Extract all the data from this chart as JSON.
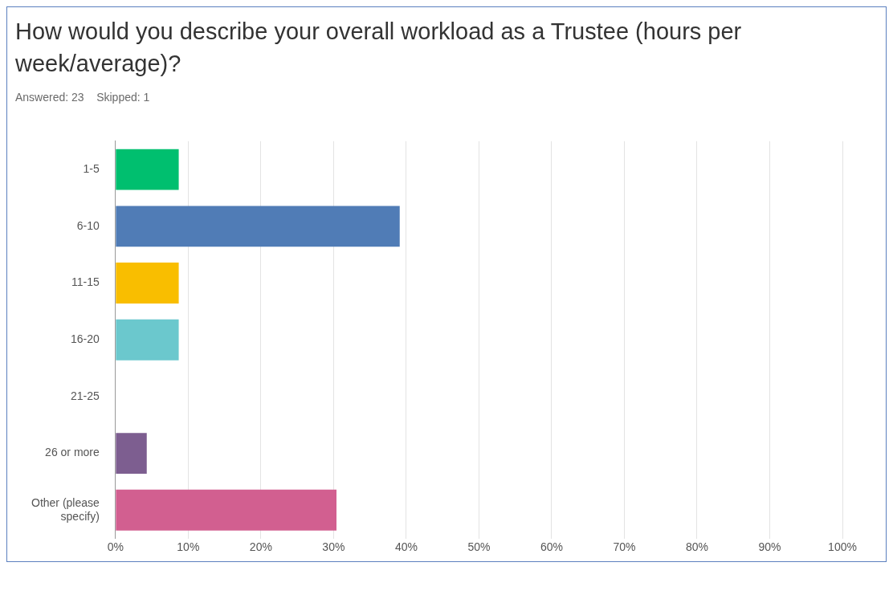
{
  "chart_data": {
    "type": "bar",
    "orientation": "horizontal",
    "title": "How would you describe your overall workload as a Trustee (hours per week/average)?",
    "subtitle": "Answered: 23    Skipped: 1",
    "categories": [
      "1-5",
      "6-10",
      "11-15",
      "16-20",
      "21-25",
      "26 or more",
      "Other (please specify)"
    ],
    "values": [
      8.7,
      39.1,
      8.7,
      8.7,
      0,
      4.3,
      30.4
    ],
    "colors": [
      "#00bf6f",
      "#507cb6",
      "#f9be00",
      "#6bc8cd",
      "#ff8b4f",
      "#7d5e90",
      "#d25f90"
    ],
    "xlim": [
      0,
      100
    ],
    "xticks": [
      {
        "value": 0,
        "label": "0%"
      },
      {
        "value": 10,
        "label": "10%"
      },
      {
        "value": 20,
        "label": "20%"
      },
      {
        "value": 30,
        "label": "30%"
      },
      {
        "value": 40,
        "label": "40%"
      },
      {
        "value": 50,
        "label": "50%"
      },
      {
        "value": 60,
        "label": "60%"
      },
      {
        "value": 70,
        "label": "70%"
      },
      {
        "value": 80,
        "label": "80%"
      },
      {
        "value": 90,
        "label": "90%"
      },
      {
        "value": 100,
        "label": "100%"
      }
    ],
    "grid": "x",
    "legend": false
  }
}
